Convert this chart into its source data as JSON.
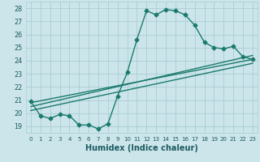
{
  "title": "",
  "xlabel": "Humidex (Indice chaleur)",
  "ylabel": "",
  "xlim": [
    -0.5,
    23.5
  ],
  "ylim": [
    18.5,
    28.5
  ],
  "xticks": [
    0,
    1,
    2,
    3,
    4,
    5,
    6,
    7,
    8,
    9,
    10,
    11,
    12,
    13,
    14,
    15,
    16,
    17,
    18,
    19,
    20,
    21,
    22,
    23
  ],
  "yticks": [
    19,
    20,
    21,
    22,
    23,
    24,
    25,
    26,
    27,
    28
  ],
  "background_color": "#cce5ea",
  "grid_color": "#aacdd5",
  "line_color": "#1a7a6e",
  "main_x": [
    0,
    1,
    2,
    3,
    4,
    5,
    6,
    7,
    8,
    9,
    10,
    11,
    12,
    13,
    14,
    15,
    16,
    17,
    18,
    19,
    20,
    21,
    22,
    23
  ],
  "main_y": [
    20.9,
    19.8,
    19.6,
    19.9,
    19.8,
    19.1,
    19.1,
    18.8,
    19.2,
    21.3,
    23.1,
    25.6,
    27.8,
    27.5,
    27.9,
    27.8,
    27.5,
    26.7,
    25.4,
    25.0,
    24.9,
    25.1,
    24.3,
    24.1
  ],
  "line1_x": [
    0,
    23
  ],
  "line1_y": [
    20.8,
    24.1
  ],
  "line2_x": [
    0,
    23
  ],
  "line2_y": [
    20.5,
    24.4
  ],
  "line3_x": [
    0,
    23
  ],
  "line3_y": [
    20.2,
    23.8
  ],
  "marker_size": 2.5,
  "line_width": 1.0,
  "tick_fontsize": 5.5,
  "xlabel_fontsize": 7.0,
  "label_color": "#1a5a60"
}
